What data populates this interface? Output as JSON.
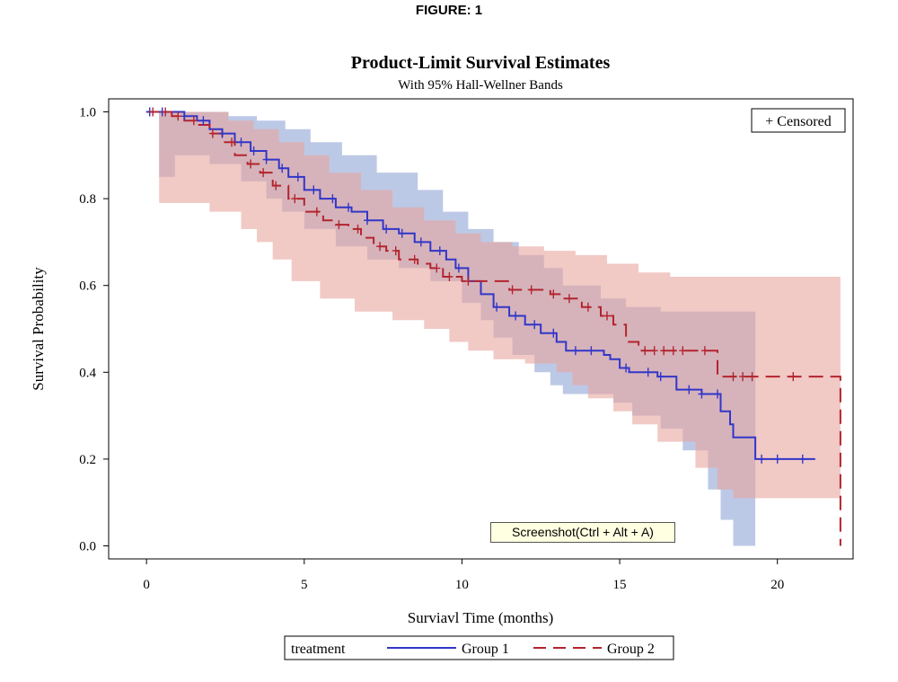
{
  "figure_label": "FIGURE: 1",
  "tooltip": "Screenshot(Ctrl + Alt + A)",
  "colors": {
    "group1_line": "#3236c8",
    "group2_line": "#b3242e",
    "group1_band": "#b0c0e2",
    "group2_band": "#e8a59f"
  },
  "chart_data": {
    "type": "line",
    "subtype": "step",
    "title": "Product-Limit Survival Estimates",
    "subtitle": "With 95% Hall-Wellner Bands",
    "xlabel": "Surviavl Time (months)",
    "ylabel": "Survival Probability",
    "xlim": [
      -1.2,
      22.4
    ],
    "ylim": [
      -0.03,
      1.03
    ],
    "xticks": [
      0,
      5,
      10,
      15,
      20
    ],
    "xtick_labels": [
      "0",
      "5",
      "10",
      "15",
      "20"
    ],
    "yticks": [
      0.0,
      0.2,
      0.4,
      0.6,
      0.8,
      1.0
    ],
    "ytick_labels": [
      "0.0",
      "0.2",
      "0.4",
      "0.6",
      "0.8",
      "1.0"
    ],
    "grid": false,
    "censored_legend": "+ Censored",
    "legend": {
      "title": "treatment",
      "placement": "bottom"
    },
    "series": [
      {
        "name": "Group 1",
        "line_style": "solid",
        "step": [
          [
            0,
            1.0
          ],
          [
            0.9,
            1.0
          ],
          [
            1.2,
            0.99
          ],
          [
            1.6,
            0.98
          ],
          [
            2.0,
            0.96
          ],
          [
            2.4,
            0.95
          ],
          [
            2.8,
            0.93
          ],
          [
            3.3,
            0.91
          ],
          [
            3.8,
            0.89
          ],
          [
            4.2,
            0.87
          ],
          [
            4.5,
            0.85
          ],
          [
            5.0,
            0.82
          ],
          [
            5.5,
            0.8
          ],
          [
            6.0,
            0.78
          ],
          [
            6.5,
            0.77
          ],
          [
            7.0,
            0.75
          ],
          [
            7.5,
            0.73
          ],
          [
            8.0,
            0.72
          ],
          [
            8.5,
            0.7
          ],
          [
            9.0,
            0.68
          ],
          [
            9.5,
            0.66
          ],
          [
            9.8,
            0.64
          ],
          [
            10.2,
            0.61
          ],
          [
            10.6,
            0.58
          ],
          [
            11.0,
            0.55
          ],
          [
            11.5,
            0.53
          ],
          [
            12.0,
            0.51
          ],
          [
            12.5,
            0.49
          ],
          [
            13.0,
            0.47
          ],
          [
            13.3,
            0.45
          ],
          [
            14.5,
            0.44
          ],
          [
            14.7,
            0.43
          ],
          [
            15.0,
            0.41
          ],
          [
            15.3,
            0.4
          ],
          [
            16.2,
            0.39
          ],
          [
            16.8,
            0.36
          ],
          [
            17.6,
            0.35
          ],
          [
            18.2,
            0.31
          ],
          [
            18.5,
            0.28
          ],
          [
            18.6,
            0.25
          ],
          [
            19.3,
            0.2
          ],
          [
            21.2,
            0.2
          ]
        ],
        "censored_x": [
          0.1,
          0.5,
          1.2,
          1.8,
          2.4,
          3.0,
          3.4,
          3.8,
          4.3,
          4.8,
          5.3,
          5.9,
          6.4,
          7.0,
          7.6,
          8.1,
          8.7,
          9.3,
          9.9,
          11.1,
          11.7,
          12.3,
          12.9,
          13.6,
          14.1,
          15.2,
          15.9,
          16.3,
          17.2,
          17.6,
          18.1,
          19.5,
          20.0,
          20.8
        ],
        "lower_band_step": [
          [
            0.4,
            0.85
          ],
          [
            0.9,
            0.9
          ],
          [
            2.0,
            0.88
          ],
          [
            3.0,
            0.84
          ],
          [
            3.8,
            0.8
          ],
          [
            4.3,
            0.77
          ],
          [
            5.0,
            0.73
          ],
          [
            6.0,
            0.69
          ],
          [
            7.0,
            0.66
          ],
          [
            8.0,
            0.64
          ],
          [
            9.0,
            0.61
          ],
          [
            10.0,
            0.56
          ],
          [
            10.6,
            0.52
          ],
          [
            11.0,
            0.48
          ],
          [
            11.6,
            0.44
          ],
          [
            12.3,
            0.4
          ],
          [
            12.8,
            0.37
          ],
          [
            13.2,
            0.35
          ],
          [
            14.8,
            0.33
          ],
          [
            15.4,
            0.3
          ],
          [
            16.3,
            0.27
          ],
          [
            17.0,
            0.22
          ],
          [
            17.8,
            0.13
          ],
          [
            18.2,
            0.06
          ],
          [
            18.6,
            0.0
          ],
          [
            19.3,
            0.0
          ]
        ],
        "upper_band_step": [
          [
            0.4,
            1.0
          ],
          [
            1.6,
            1.0
          ],
          [
            2.6,
            0.99
          ],
          [
            3.5,
            0.98
          ],
          [
            4.4,
            0.96
          ],
          [
            5.2,
            0.93
          ],
          [
            6.2,
            0.9
          ],
          [
            7.3,
            0.86
          ],
          [
            8.6,
            0.82
          ],
          [
            9.4,
            0.77
          ],
          [
            10.2,
            0.73
          ],
          [
            11.0,
            0.7
          ],
          [
            11.8,
            0.67
          ],
          [
            12.6,
            0.64
          ],
          [
            13.2,
            0.6
          ],
          [
            14.4,
            0.57
          ],
          [
            15.2,
            0.55
          ],
          [
            16.3,
            0.54
          ],
          [
            19.3,
            0.54
          ]
        ]
      },
      {
        "name": "Group 2",
        "line_style": "dashed",
        "step": [
          [
            0,
            1.0
          ],
          [
            0.8,
            0.99
          ],
          [
            1.2,
            0.98
          ],
          [
            1.6,
            0.97
          ],
          [
            2.0,
            0.95
          ],
          [
            2.4,
            0.93
          ],
          [
            2.8,
            0.9
          ],
          [
            3.2,
            0.88
          ],
          [
            3.6,
            0.86
          ],
          [
            4.0,
            0.83
          ],
          [
            4.5,
            0.8
          ],
          [
            5.0,
            0.77
          ],
          [
            5.6,
            0.75
          ],
          [
            6.0,
            0.74
          ],
          [
            6.4,
            0.73
          ],
          [
            6.8,
            0.71
          ],
          [
            7.2,
            0.69
          ],
          [
            7.6,
            0.68
          ],
          [
            8.0,
            0.66
          ],
          [
            8.6,
            0.65
          ],
          [
            9.0,
            0.64
          ],
          [
            9.4,
            0.62
          ],
          [
            10.0,
            0.61
          ],
          [
            10.8,
            0.61
          ],
          [
            11.5,
            0.59
          ],
          [
            12.0,
            0.59
          ],
          [
            12.8,
            0.58
          ],
          [
            13.2,
            0.57
          ],
          [
            13.8,
            0.55
          ],
          [
            14.4,
            0.53
          ],
          [
            14.8,
            0.51
          ],
          [
            15.2,
            0.47
          ],
          [
            15.6,
            0.45
          ],
          [
            16.9,
            0.45
          ],
          [
            18.1,
            0.39
          ],
          [
            22.0,
            0.39
          ],
          [
            22.0,
            0.0
          ]
        ],
        "censored_x": [
          0.2,
          0.6,
          1.0,
          1.5,
          2.1,
          2.7,
          3.3,
          3.7,
          4.1,
          4.7,
          5.4,
          6.1,
          6.7,
          7.4,
          7.9,
          8.5,
          9.2,
          9.6,
          10.2,
          11.6,
          12.2,
          12.9,
          13.4,
          14.0,
          14.6,
          15.8,
          16.1,
          16.4,
          16.7,
          17.0,
          17.7,
          18.6,
          18.9,
          19.2,
          20.5
        ],
        "lower_band_step": [
          [
            0.4,
            0.79
          ],
          [
            2.0,
            0.77
          ],
          [
            3.0,
            0.73
          ],
          [
            3.5,
            0.7
          ],
          [
            4.0,
            0.66
          ],
          [
            4.6,
            0.61
          ],
          [
            5.5,
            0.57
          ],
          [
            6.6,
            0.54
          ],
          [
            7.8,
            0.52
          ],
          [
            8.8,
            0.5
          ],
          [
            9.6,
            0.47
          ],
          [
            10.2,
            0.45
          ],
          [
            11.0,
            0.43
          ],
          [
            12.0,
            0.42
          ],
          [
            13.0,
            0.4
          ],
          [
            13.5,
            0.37
          ],
          [
            14.0,
            0.34
          ],
          [
            14.8,
            0.31
          ],
          [
            15.4,
            0.28
          ],
          [
            16.2,
            0.24
          ],
          [
            17.4,
            0.18
          ],
          [
            18.1,
            0.13
          ],
          [
            18.6,
            0.11
          ],
          [
            22.0,
            0.11
          ]
        ],
        "upper_band_step": [
          [
            0.4,
            1.0
          ],
          [
            1.8,
            1.0
          ],
          [
            2.6,
            0.98
          ],
          [
            3.4,
            0.96
          ],
          [
            4.2,
            0.93
          ],
          [
            5.0,
            0.9
          ],
          [
            5.8,
            0.86
          ],
          [
            6.8,
            0.82
          ],
          [
            7.8,
            0.78
          ],
          [
            8.8,
            0.75
          ],
          [
            9.8,
            0.72
          ],
          [
            10.6,
            0.7
          ],
          [
            11.6,
            0.69
          ],
          [
            12.6,
            0.68
          ],
          [
            13.6,
            0.67
          ],
          [
            14.6,
            0.65
          ],
          [
            15.6,
            0.63
          ],
          [
            16.6,
            0.62
          ],
          [
            22.0,
            0.62
          ]
        ]
      }
    ]
  }
}
